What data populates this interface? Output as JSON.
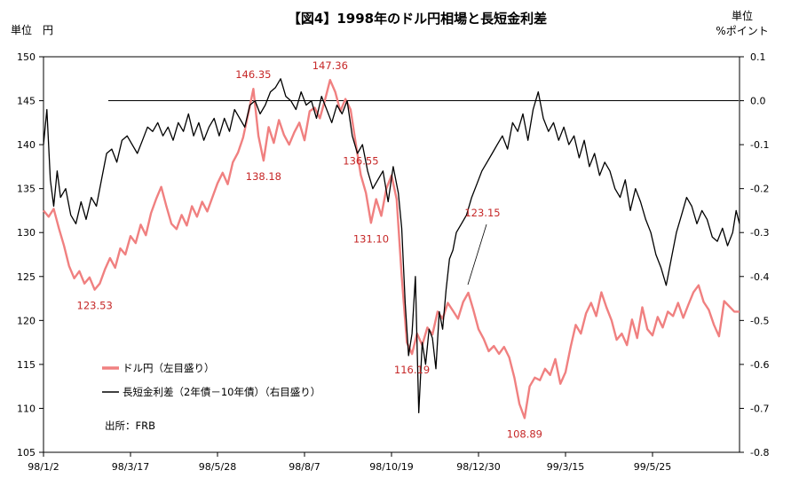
{
  "chart_data": {
    "type": "line",
    "title": "【図4】1998年のドル円相場と長短金利差",
    "left_unit": "単位　円",
    "right_unit_1": "単位",
    "right_unit_2": "%ポイント",
    "source": "出所：FRB",
    "x_tick_labels": [
      "98/1/2",
      "98/3/17",
      "98/5/28",
      "98/8/7",
      "98/10/19",
      "98/12/30",
      "99/3/15",
      "99/5/25"
    ],
    "left_axis": {
      "min": 105,
      "max": 150,
      "step": 5,
      "tick_labels": [
        "105",
        "110",
        "115",
        "120",
        "125",
        "130",
        "135",
        "140",
        "145",
        "150"
      ]
    },
    "right_axis": {
      "min": -0.8,
      "max": 0.1,
      "step": 0.1,
      "tick_labels": [
        "-0.8",
        "-0.7",
        "-0.6",
        "-0.5",
        "-0.4",
        "-0.3",
        "-0.2",
        "-0.1",
        "0.0",
        "0.1"
      ]
    },
    "reference_line": {
      "axis": "right",
      "value": 0.0
    },
    "series": [
      {
        "name": "ドル円（左目盛り）",
        "axis": "left",
        "color": "#f08080",
        "points": [
          [
            0,
            132.5
          ],
          [
            3,
            131.8
          ],
          [
            6,
            132.7
          ],
          [
            9,
            130.5
          ],
          [
            12,
            128.5
          ],
          [
            15,
            126.2
          ],
          [
            18,
            124.8
          ],
          [
            21,
            125.6
          ],
          [
            24,
            124.2
          ],
          [
            27,
            124.9
          ],
          [
            30,
            123.5
          ],
          [
            33,
            124.2
          ],
          [
            36,
            125.8
          ],
          [
            39,
            127.1
          ],
          [
            42,
            126.0
          ],
          [
            45,
            128.2
          ],
          [
            48,
            127.5
          ],
          [
            51,
            129.6
          ],
          [
            54,
            128.8
          ],
          [
            57,
            130.9
          ],
          [
            60,
            129.7
          ],
          [
            63,
            132.2
          ],
          [
            66,
            133.8
          ],
          [
            69,
            135.2
          ],
          [
            72,
            133.0
          ],
          [
            75,
            131.0
          ],
          [
            78,
            130.4
          ],
          [
            81,
            132.0
          ],
          [
            84,
            130.8
          ],
          [
            87,
            133.0
          ],
          [
            90,
            131.8
          ],
          [
            93,
            133.5
          ],
          [
            96,
            132.4
          ],
          [
            99,
            134.0
          ],
          [
            102,
            135.6
          ],
          [
            105,
            136.8
          ],
          [
            108,
            135.5
          ],
          [
            111,
            138.0
          ],
          [
            114,
            139.1
          ],
          [
            117,
            140.8
          ],
          [
            120,
            143.5
          ],
          [
            123,
            146.35
          ],
          [
            126,
            141.0
          ],
          [
            129,
            138.18
          ],
          [
            132,
            142.0
          ],
          [
            135,
            140.2
          ],
          [
            138,
            142.8
          ],
          [
            141,
            141.1
          ],
          [
            144,
            140.0
          ],
          [
            147,
            141.4
          ],
          [
            150,
            142.5
          ],
          [
            153,
            140.5
          ],
          [
            156,
            143.8
          ],
          [
            159,
            144.2
          ],
          [
            162,
            143.0
          ],
          [
            165,
            145.1
          ],
          [
            168,
            147.36
          ],
          [
            171,
            146.0
          ],
          [
            174,
            143.8
          ],
          [
            177,
            145.2
          ],
          [
            180,
            144.0
          ],
          [
            183,
            140.2
          ],
          [
            186,
            136.55
          ],
          [
            189,
            134.5
          ],
          [
            192,
            131.1
          ],
          [
            195,
            133.8
          ],
          [
            198,
            131.9
          ],
          [
            201,
            135.0
          ],
          [
            204,
            136.5
          ],
          [
            207,
            133.8
          ],
          [
            210,
            125.0
          ],
          [
            213,
            117.5
          ],
          [
            216,
            116.19
          ],
          [
            219,
            118.5
          ],
          [
            222,
            117.2
          ],
          [
            225,
            119.2
          ],
          [
            228,
            118.4
          ],
          [
            231,
            121.0
          ],
          [
            234,
            120.2
          ],
          [
            237,
            122.0
          ],
          [
            240,
            121.1
          ],
          [
            243,
            120.2
          ],
          [
            246,
            122.1
          ],
          [
            249,
            123.15
          ],
          [
            252,
            121.2
          ],
          [
            255,
            119.0
          ],
          [
            258,
            117.9
          ],
          [
            261,
            116.5
          ],
          [
            264,
            117.1
          ],
          [
            267,
            116.2
          ],
          [
            270,
            117.0
          ],
          [
            273,
            115.8
          ],
          [
            276,
            113.5
          ],
          [
            279,
            110.5
          ],
          [
            282,
            108.89
          ],
          [
            285,
            112.5
          ],
          [
            288,
            113.5
          ],
          [
            291,
            113.2
          ],
          [
            294,
            114.5
          ],
          [
            297,
            113.8
          ],
          [
            300,
            115.6
          ],
          [
            303,
            112.8
          ],
          [
            306,
            114.1
          ],
          [
            309,
            117.0
          ],
          [
            312,
            119.5
          ],
          [
            315,
            118.5
          ],
          [
            318,
            120.8
          ],
          [
            321,
            122.0
          ],
          [
            324,
            120.5
          ],
          [
            327,
            123.2
          ],
          [
            330,
            121.5
          ],
          [
            333,
            120.0
          ],
          [
            336,
            117.8
          ],
          [
            339,
            118.5
          ],
          [
            342,
            117.2
          ],
          [
            345,
            120.1
          ],
          [
            348,
            118.0
          ],
          [
            351,
            121.5
          ],
          [
            354,
            119.0
          ],
          [
            357,
            118.3
          ],
          [
            360,
            120.4
          ],
          [
            363,
            119.2
          ],
          [
            366,
            121.0
          ],
          [
            369,
            120.5
          ],
          [
            372,
            122.0
          ],
          [
            375,
            120.3
          ],
          [
            378,
            121.8
          ],
          [
            381,
            123.2
          ],
          [
            384,
            124.0
          ],
          [
            387,
            122.1
          ],
          [
            390,
            121.2
          ],
          [
            393,
            119.5
          ],
          [
            396,
            118.2
          ],
          [
            399,
            122.2
          ],
          [
            402,
            121.6
          ],
          [
            405,
            121.0
          ],
          [
            408,
            121.0
          ]
        ]
      },
      {
        "name": "長短金利差（2年債－10年債）（右目盛り）",
        "axis": "right",
        "color": "#000000",
        "points": [
          [
            0,
            -0.1
          ],
          [
            2,
            -0.02
          ],
          [
            4,
            -0.18
          ],
          [
            6,
            -0.24
          ],
          [
            8,
            -0.16
          ],
          [
            10,
            -0.22
          ],
          [
            13,
            -0.2
          ],
          [
            16,
            -0.26
          ],
          [
            19,
            -0.28
          ],
          [
            22,
            -0.23
          ],
          [
            25,
            -0.27
          ],
          [
            28,
            -0.22
          ],
          [
            31,
            -0.24
          ],
          [
            34,
            -0.18
          ],
          [
            37,
            -0.12
          ],
          [
            40,
            -0.11
          ],
          [
            43,
            -0.14
          ],
          [
            46,
            -0.09
          ],
          [
            49,
            -0.08
          ],
          [
            52,
            -0.1
          ],
          [
            55,
            -0.12
          ],
          [
            58,
            -0.09
          ],
          [
            61,
            -0.06
          ],
          [
            64,
            -0.07
          ],
          [
            67,
            -0.05
          ],
          [
            70,
            -0.08
          ],
          [
            73,
            -0.06
          ],
          [
            76,
            -0.09
          ],
          [
            79,
            -0.05
          ],
          [
            82,
            -0.07
          ],
          [
            85,
            -0.03
          ],
          [
            88,
            -0.08
          ],
          [
            91,
            -0.05
          ],
          [
            94,
            -0.09
          ],
          [
            97,
            -0.06
          ],
          [
            100,
            -0.04
          ],
          [
            103,
            -0.08
          ],
          [
            106,
            -0.04
          ],
          [
            109,
            -0.07
          ],
          [
            112,
            -0.02
          ],
          [
            115,
            -0.04
          ],
          [
            118,
            -0.06
          ],
          [
            121,
            -0.01
          ],
          [
            124,
            0.0
          ],
          [
            127,
            -0.03
          ],
          [
            130,
            -0.01
          ],
          [
            133,
            0.02
          ],
          [
            136,
            0.03
          ],
          [
            139,
            0.05
          ],
          [
            142,
            0.01
          ],
          [
            145,
            0.0
          ],
          [
            148,
            -0.02
          ],
          [
            151,
            0.02
          ],
          [
            154,
            -0.01
          ],
          [
            157,
            0.0
          ],
          [
            160,
            -0.04
          ],
          [
            163,
            0.01
          ],
          [
            166,
            -0.02
          ],
          [
            169,
            -0.05
          ],
          [
            172,
            -0.01
          ],
          [
            175,
            -0.03
          ],
          [
            178,
            0.0
          ],
          [
            181,
            -0.08
          ],
          [
            184,
            -0.12
          ],
          [
            187,
            -0.1
          ],
          [
            190,
            -0.16
          ],
          [
            193,
            -0.2
          ],
          [
            196,
            -0.18
          ],
          [
            199,
            -0.16
          ],
          [
            202,
            -0.23
          ],
          [
            205,
            -0.15
          ],
          [
            208,
            -0.21
          ],
          [
            210,
            -0.29
          ],
          [
            212,
            -0.46
          ],
          [
            214,
            -0.58
          ],
          [
            216,
            -0.53
          ],
          [
            218,
            -0.4
          ],
          [
            220,
            -0.71
          ],
          [
            222,
            -0.55
          ],
          [
            224,
            -0.6
          ],
          [
            226,
            -0.52
          ],
          [
            228,
            -0.54
          ],
          [
            230,
            -0.61
          ],
          [
            232,
            -0.48
          ],
          [
            234,
            -0.52
          ],
          [
            236,
            -0.43
          ],
          [
            238,
            -0.36
          ],
          [
            240,
            -0.34
          ],
          [
            242,
            -0.3
          ],
          [
            245,
            -0.28
          ],
          [
            248,
            -0.26
          ],
          [
            251,
            -0.22
          ],
          [
            254,
            -0.19
          ],
          [
            257,
            -0.16
          ],
          [
            260,
            -0.14
          ],
          [
            263,
            -0.12
          ],
          [
            266,
            -0.1
          ],
          [
            269,
            -0.08
          ],
          [
            272,
            -0.11
          ],
          [
            275,
            -0.05
          ],
          [
            278,
            -0.07
          ],
          [
            281,
            -0.03
          ],
          [
            284,
            -0.09
          ],
          [
            287,
            -0.02
          ],
          [
            290,
            0.02
          ],
          [
            293,
            -0.04
          ],
          [
            296,
            -0.07
          ],
          [
            299,
            -0.05
          ],
          [
            302,
            -0.09
          ],
          [
            305,
            -0.06
          ],
          [
            308,
            -0.1
          ],
          [
            311,
            -0.08
          ],
          [
            314,
            -0.13
          ],
          [
            317,
            -0.09
          ],
          [
            320,
            -0.15
          ],
          [
            323,
            -0.12
          ],
          [
            326,
            -0.17
          ],
          [
            329,
            -0.14
          ],
          [
            332,
            -0.16
          ],
          [
            335,
            -0.2
          ],
          [
            338,
            -0.22
          ],
          [
            341,
            -0.18
          ],
          [
            344,
            -0.25
          ],
          [
            347,
            -0.2
          ],
          [
            350,
            -0.23
          ],
          [
            353,
            -0.27
          ],
          [
            356,
            -0.3
          ],
          [
            359,
            -0.35
          ],
          [
            362,
            -0.38
          ],
          [
            365,
            -0.42
          ],
          [
            368,
            -0.36
          ],
          [
            371,
            -0.3
          ],
          [
            374,
            -0.26
          ],
          [
            377,
            -0.22
          ],
          [
            380,
            -0.24
          ],
          [
            383,
            -0.28
          ],
          [
            386,
            -0.25
          ],
          [
            389,
            -0.27
          ],
          [
            392,
            -0.31
          ],
          [
            395,
            -0.32
          ],
          [
            398,
            -0.29
          ],
          [
            401,
            -0.33
          ],
          [
            404,
            -0.3
          ],
          [
            406,
            -0.25
          ],
          [
            408,
            -0.28
          ]
        ]
      }
    ],
    "annotations": [
      {
        "text": "146.35",
        "x": 123,
        "y": 146.35,
        "placement": "above"
      },
      {
        "text": "147.36",
        "x": 168,
        "y": 147.36,
        "placement": "above"
      },
      {
        "text": "138.18",
        "x": 129,
        "y": 138.18,
        "placement": "below"
      },
      {
        "text": "136.55",
        "x": 186,
        "y": 136.55,
        "placement": "above"
      },
      {
        "text": "131.10",
        "x": 192,
        "y": 131.1,
        "placement": "below"
      },
      {
        "text": "123.53",
        "x": 30,
        "y": 123.53,
        "placement": "below"
      },
      {
        "text": "123.15",
        "x": 249,
        "y": 123.15,
        "placement": "above-right"
      },
      {
        "text": "116.19",
        "x": 216,
        "y": 116.19,
        "placement": "below"
      },
      {
        "text": "108.89",
        "x": 282,
        "y": 108.89,
        "placement": "below"
      }
    ]
  }
}
